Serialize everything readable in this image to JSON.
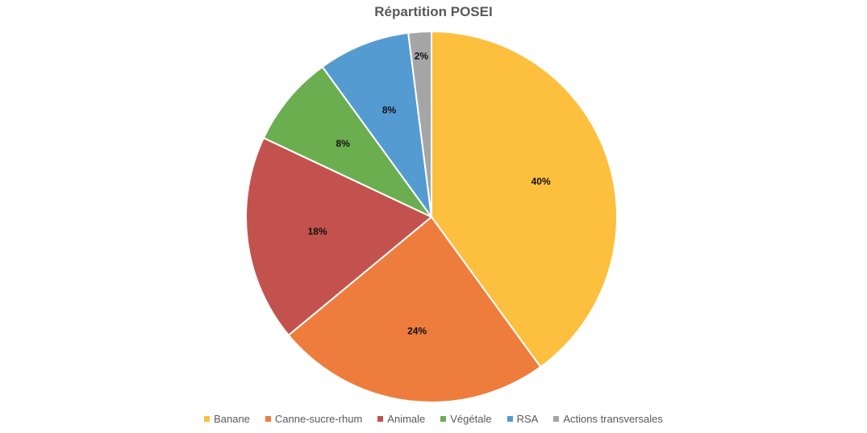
{
  "chart_data": {
    "type": "pie",
    "title": "Répartition POSEI",
    "categories": [
      "Banane",
      "Canne-sucre-rhum",
      "Animale",
      "Végétale",
      "RSA",
      "Actions transversales"
    ],
    "values": [
      40,
      24,
      18,
      8,
      8,
      2
    ],
    "value_labels": [
      "40%",
      "24%",
      "18%",
      "8%",
      "8%",
      "2%"
    ],
    "colors": [
      "#FDBF3E",
      "#EE7D3D",
      "#C3524F",
      "#6BAE50",
      "#549BD2",
      "#A5A5A5"
    ],
    "legend_position": "bottom",
    "start_angle_deg": 0,
    "direction": "clockwise"
  }
}
